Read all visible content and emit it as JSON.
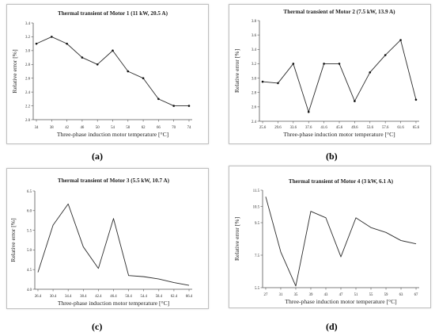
{
  "subcaptions": [
    "(a)",
    "(b)",
    "(c)",
    "(d)"
  ],
  "chart_data": [
    {
      "type": "line",
      "title": "Thermal transient of Motor 1 (11 kW, 20.5 A)",
      "xlabel": "Three-phase induction motor temperature [°C]",
      "ylabel": "Relative error [%]",
      "x": [
        34,
        38,
        42,
        46,
        50,
        54,
        58,
        62,
        66,
        70,
        74
      ],
      "y": [
        3.1,
        3.2,
        3.1,
        2.9,
        2.8,
        3.0,
        2.7,
        2.6,
        2.3,
        2.2,
        2.2
      ],
      "xticks": [
        "34",
        "38",
        "42",
        "46",
        "50",
        "54",
        "58",
        "62",
        "66",
        "70",
        "74"
      ],
      "yticks": [
        "2.0",
        "2.2",
        "2.4",
        "2.6",
        "2.8",
        "3.0",
        "3.2",
        "3.4"
      ],
      "ylim": [
        2.0,
        3.4
      ],
      "grid": false,
      "markers": true
    },
    {
      "type": "line",
      "title": "Thermal transient of Motor 2 (7.5 kW, 13.9 A)",
      "xlabel": "Three-phase induction motor temperature [°C]",
      "ylabel": "Relative error [%]",
      "x": [
        25.6,
        29.6,
        33.6,
        37.6,
        41.6,
        45.6,
        49.6,
        53.6,
        57.6,
        61.6,
        65.6
      ],
      "y": [
        2.95,
        2.93,
        3.2,
        2.53,
        3.2,
        3.2,
        2.68,
        3.08,
        3.32,
        3.53,
        2.7
      ],
      "xticks": [
        "25.6",
        "29.6",
        "33.6",
        "37.6",
        "41.6",
        "45.6",
        "49.6",
        "53.6",
        "57.6",
        "61.6",
        "65.6"
      ],
      "yticks": [
        "2.4",
        "2.6",
        "2.8",
        "3.0",
        "3.2",
        "3.4",
        "3.6",
        "3.8"
      ],
      "ylim": [
        2.4,
        3.8
      ],
      "grid": false,
      "markers": true
    },
    {
      "type": "line",
      "title": "Thermal transient of Motor 3 (5.5 kW, 10.7 A)",
      "xlabel": "Three-phase induction motor temperature [°C]",
      "ylabel": "Relative error [%]",
      "x": [
        26.4,
        30.4,
        34.4,
        38.4,
        42.4,
        46.4,
        50.4,
        54.4,
        58.4,
        62.4,
        66.4
      ],
      "y": [
        4.43,
        5.63,
        6.17,
        5.08,
        4.53,
        5.8,
        4.35,
        4.32,
        4.26,
        4.17,
        4.1
      ],
      "xticks": [
        "26.4",
        "30.4",
        "34.4",
        "38.4",
        "42.4",
        "46.4",
        "50.4",
        "54.4",
        "58.4",
        "62.4",
        "66.4"
      ],
      "yticks": [
        "4.0",
        "4.5",
        "5.0",
        "5.5",
        "6.0",
        "6.5"
      ],
      "ylim": [
        4.0,
        6.5
      ],
      "grid": false,
      "markers": false
    },
    {
      "type": "line",
      "title": "Thermal transient of Motor 4 (3 kW, 6.1 A)",
      "xlabel": "Three-phase induction motor temperature [°C]",
      "ylabel": "Relative error [%]",
      "x": [
        27,
        31,
        35,
        39,
        43,
        47,
        51,
        55,
        59,
        63,
        67
      ],
      "y": [
        11.1,
        7.7,
        5.6,
        10.2,
        9.8,
        7.4,
        9.8,
        9.2,
        8.9,
        8.4,
        8.2
      ],
      "xticks": [
        "27",
        "31",
        "35",
        "39",
        "43",
        "47",
        "51",
        "55",
        "59",
        "63",
        "67"
      ],
      "yticks": [
        "5.5",
        "7.5",
        "9.5",
        "10.5",
        "11.5"
      ],
      "yticks_values": [
        5.5,
        7.5,
        9.5,
        10.5,
        11.5
      ],
      "ylim": [
        5.5,
        11.5
      ],
      "grid": false,
      "markers": false
    }
  ]
}
